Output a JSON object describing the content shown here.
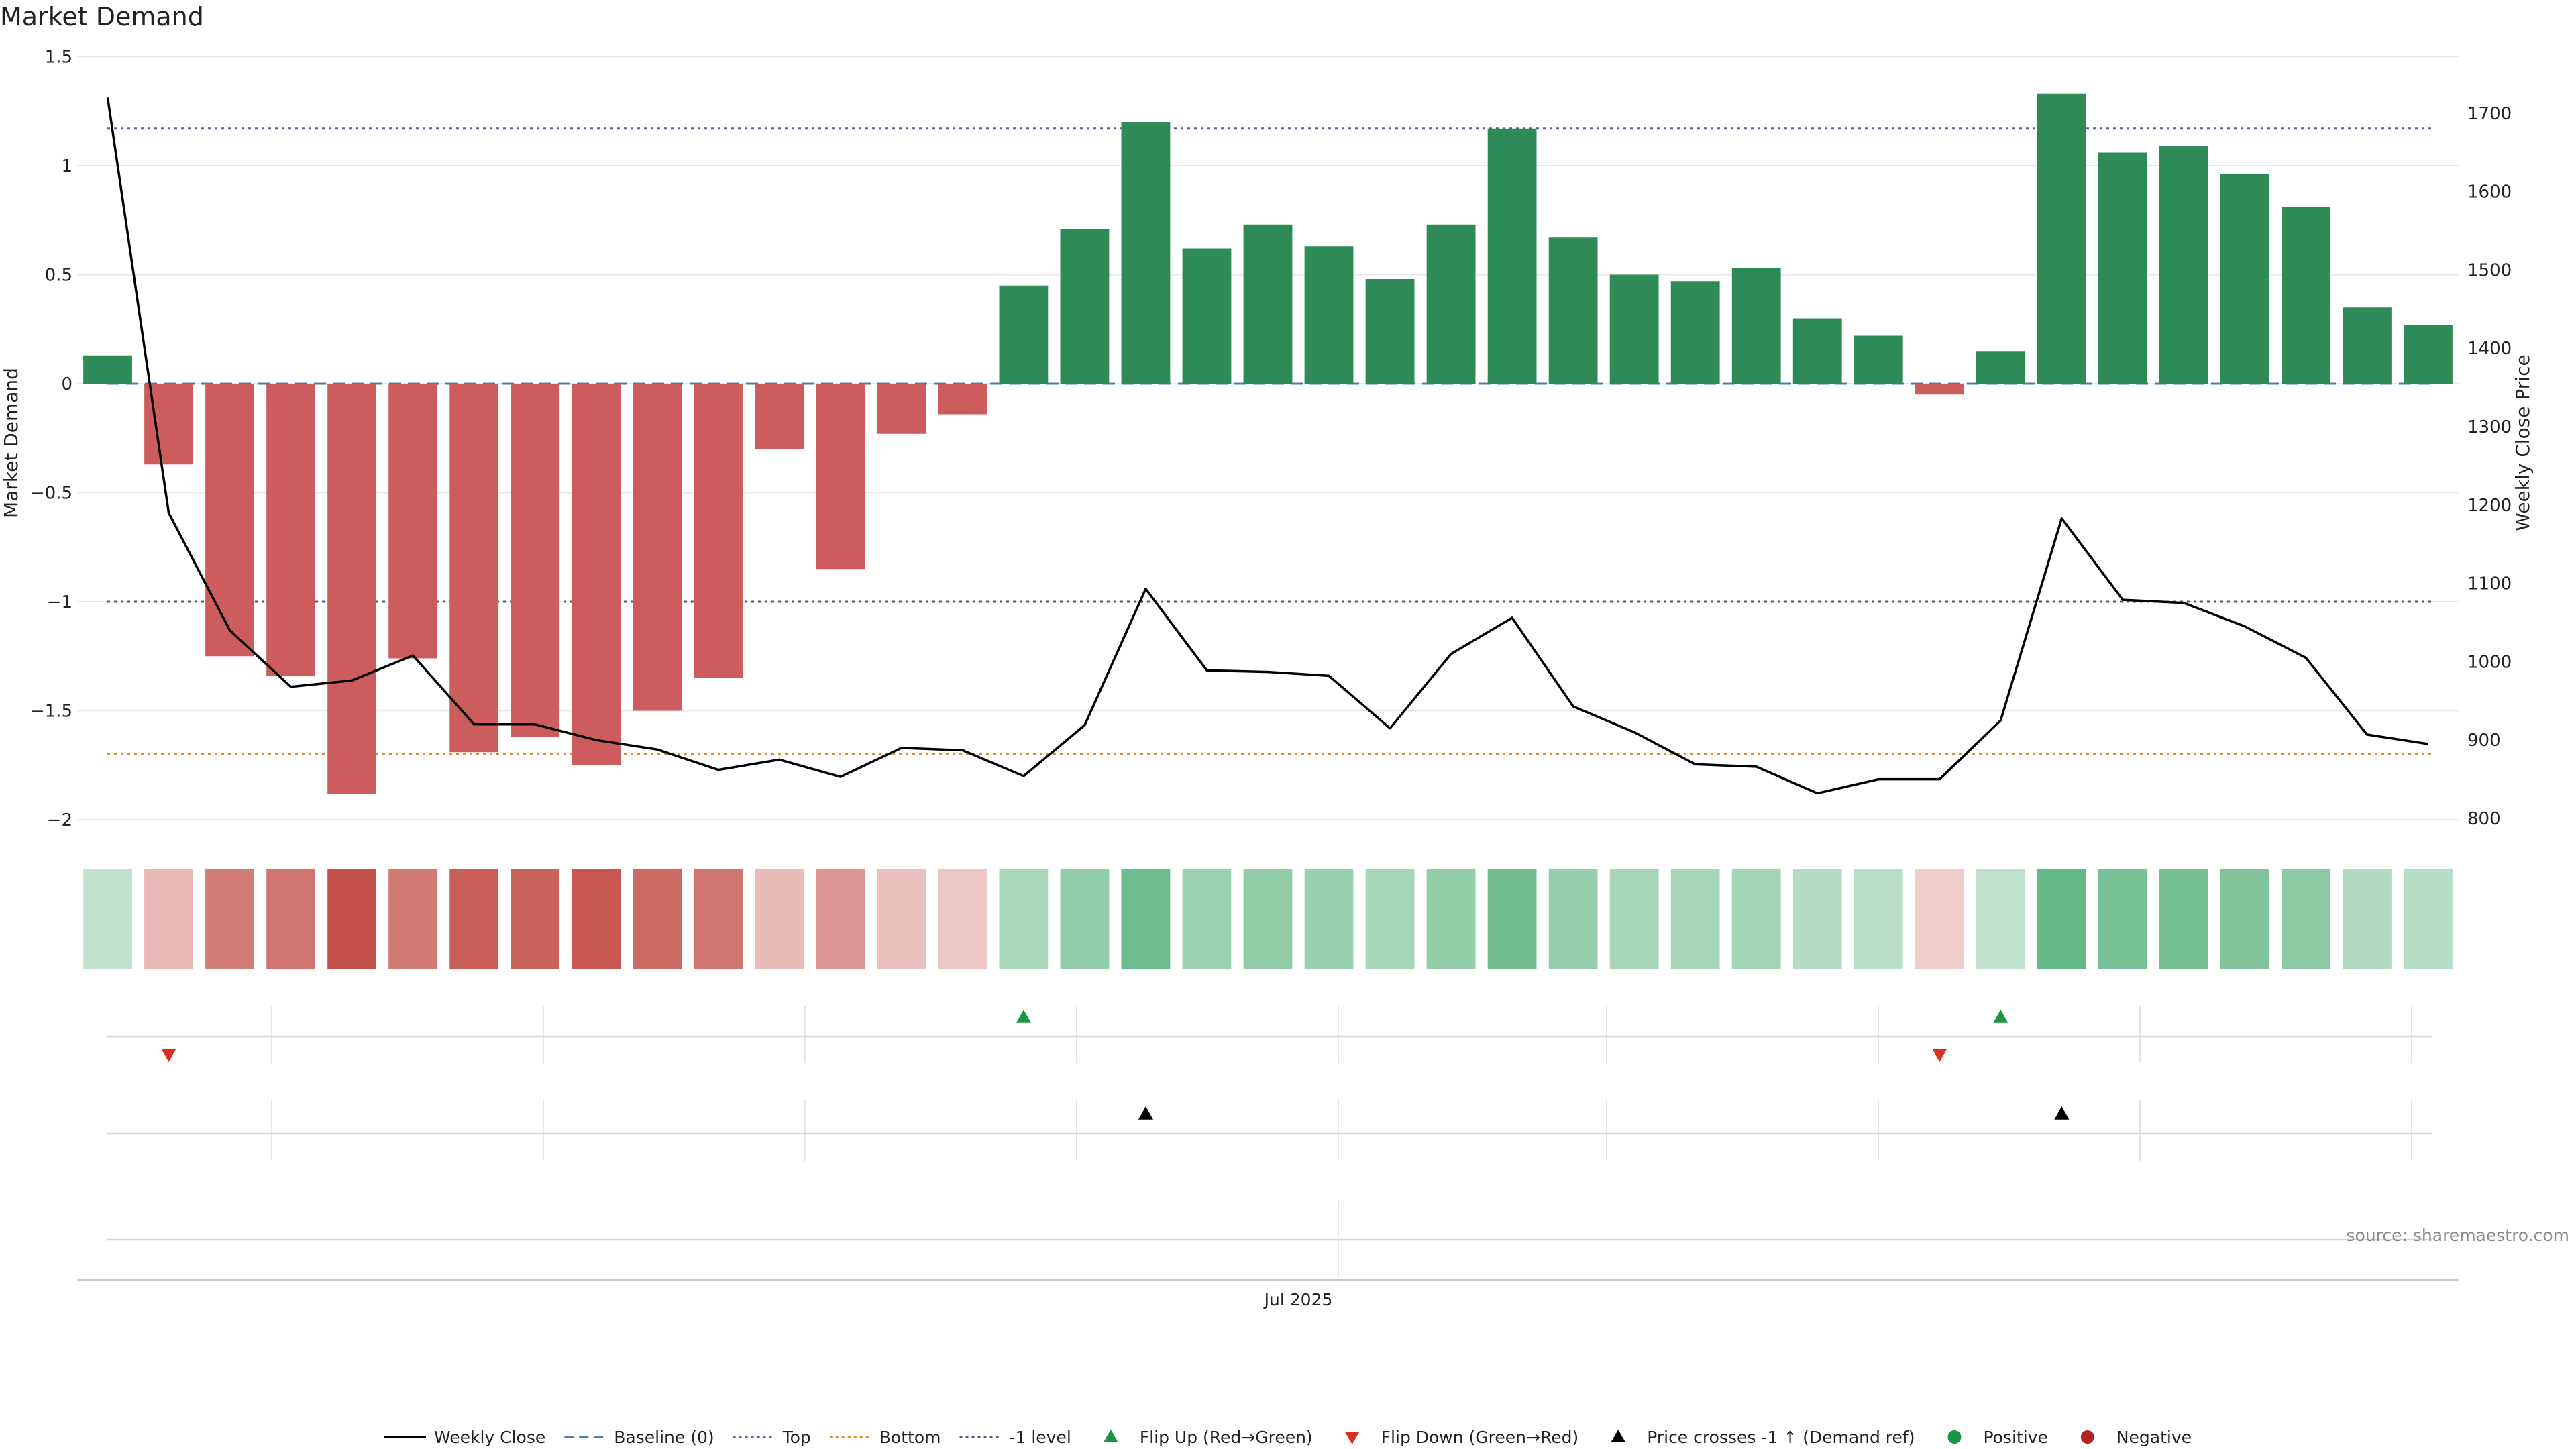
{
  "title": "Market Demand",
  "source": "source: sharemaestro.com",
  "colors": {
    "positive": "#2e8b57",
    "negative": "#cd5c5c",
    "weekly_close": "#000000",
    "baseline": "#4a7fb5",
    "top": "#5560a0",
    "bottom": "#e08a20",
    "minus_one": "#555577",
    "flip_up": "#1a9641",
    "flip_down": "#d7301f",
    "cross": "#000000",
    "grid": "#e8e8e8",
    "axis_text": "#222222"
  },
  "legend": {
    "items": [
      {
        "label": "Weekly Close",
        "marker": "line-solid",
        "color": "#000000"
      },
      {
        "label": "Baseline (0)",
        "marker": "line-dashed",
        "color": "#4a7fb5"
      },
      {
        "label": "Top",
        "marker": "line-dotted",
        "color": "#5560a0"
      },
      {
        "label": "Bottom",
        "marker": "line-dotted",
        "color": "#e08a20"
      },
      {
        "label": "-1 level",
        "marker": "line-dotted",
        "color": "#555577"
      },
      {
        "label": "Flip Up (Red→Green)",
        "marker": "triangle-up",
        "color": "#1a9641"
      },
      {
        "label": "Flip Down (Green→Red)",
        "marker": "triangle-down",
        "color": "#d7301f"
      },
      {
        "label": "Price crosses -1 ↑ (Demand ref)",
        "marker": "triangle-up",
        "color": "#000000"
      },
      {
        "label": "Positive",
        "marker": "circle",
        "color": "#1a9641"
      },
      {
        "label": "Negative",
        "marker": "circle",
        "color": "#b22222"
      }
    ],
    "placement": "bottom-center"
  },
  "chart_data": {
    "type": "bar",
    "ylabel": "Market Demand",
    "y2label": "Weekly Close Price",
    "xlabel": "",
    "ylim": [
      -2.1,
      1.5
    ],
    "y2lim": [
      770,
      1810
    ],
    "yticks": [
      1.5,
      1,
      0.5,
      0,
      -0.5,
      -1,
      -1.5,
      -2
    ],
    "y2ticks": [
      1700,
      1600,
      1500,
      1400,
      1300,
      1200,
      1100,
      1000,
      900,
      800
    ],
    "x_tick_labels": [
      {
        "index": 20,
        "label": "Jul 2025"
      }
    ],
    "grid": true,
    "levels": {
      "baseline": 0,
      "top": 1.17,
      "bottom": -1.7,
      "minus_one": -1
    },
    "series": [
      {
        "name": "Market Demand",
        "kind": "bar",
        "values": [
          0.13,
          -0.37,
          -1.25,
          -1.34,
          -1.88,
          -1.26,
          -1.69,
          -1.62,
          -1.75,
          -1.5,
          -1.35,
          -0.3,
          -0.85,
          -0.23,
          -0.14,
          0.45,
          0.71,
          1.2,
          0.62,
          0.73,
          0.63,
          0.48,
          0.73,
          1.17,
          0.67,
          0.5,
          0.47,
          0.53,
          0.3,
          0.22,
          -0.05,
          0.15,
          1.33,
          1.06,
          1.09,
          0.96,
          0.81,
          0.35,
          0.27
        ]
      },
      {
        "name": "Weekly Close",
        "kind": "line",
        "axis": "right",
        "values": [
          1720,
          1190,
          1040,
          968,
          976,
          1008,
          920,
          920,
          900,
          888,
          862,
          875,
          853,
          890,
          887,
          854,
          919,
          1093,
          989,
          987,
          982,
          915,
          1010,
          1056,
          943,
          910,
          869,
          866,
          832,
          850,
          850,
          925,
          1183,
          1079,
          1075,
          1045,
          1005,
          907,
          895
        ]
      }
    ],
    "flip_up_indices": [
      15,
      31
    ],
    "flip_down_indices": [
      1,
      30
    ],
    "price_cross_indices": [
      17,
      32
    ]
  }
}
